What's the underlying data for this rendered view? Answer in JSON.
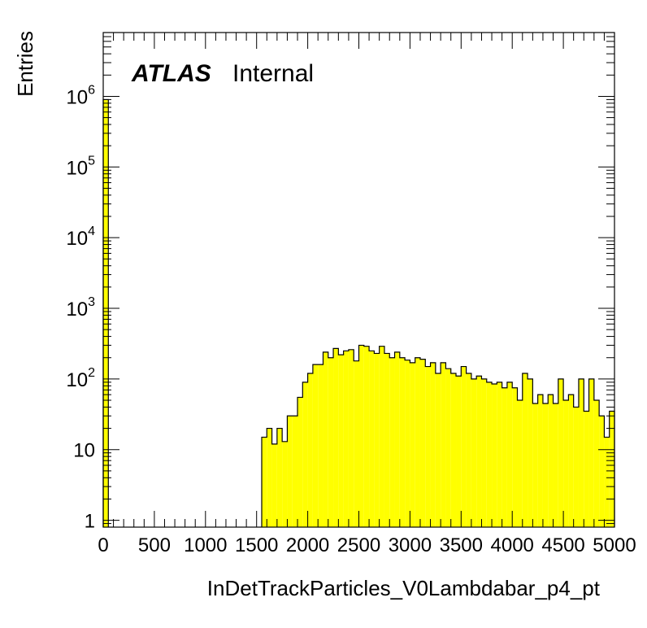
{
  "chart_data": {
    "type": "bar",
    "subtype": "histogram",
    "xlabel": "InDetTrackParticles_V0Lambdabar_p4_pt",
    "ylabel": "Entries",
    "atlas_label": "ATLAS",
    "atlas_status": "Internal",
    "x_range": [
      0,
      5000
    ],
    "y_range": [
      0.8,
      8000000
    ],
    "y_scale": "log",
    "bin_width": 50,
    "x_ticks": [
      "0",
      "500",
      "1000",
      "1500",
      "2000",
      "2500",
      "3000",
      "3500",
      "4000",
      "4500",
      "5000"
    ],
    "y_ticks": [
      {
        "value": 1,
        "label": "1",
        "sup": ""
      },
      {
        "value": 10,
        "label": "10",
        "sup": ""
      },
      {
        "value": 100,
        "label": "10",
        "sup": "2"
      },
      {
        "value": 1000,
        "label": "10",
        "sup": "3"
      },
      {
        "value": 10000,
        "label": "10",
        "sup": "4"
      },
      {
        "value": 100000,
        "label": "10",
        "sup": "5"
      },
      {
        "value": 1000000,
        "label": "10",
        "sup": "6"
      }
    ],
    "fill_color": "#ffff00",
    "line_color": "#000000",
    "grid": false,
    "series": [
      {
        "x_low": [
          0,
          1550,
          1600,
          1650,
          1700,
          1750,
          1800,
          1850,
          1900,
          1950,
          2000,
          2050,
          2100,
          2150,
          2200,
          2250,
          2300,
          2350,
          2400,
          2450,
          2500,
          2550,
          2600,
          2650,
          2700,
          2750,
          2800,
          2850,
          2900,
          2950,
          3000,
          3050,
          3100,
          3150,
          3200,
          3250,
          3300,
          3350,
          3400,
          3450,
          3500,
          3550,
          3600,
          3650,
          3700,
          3750,
          3800,
          3850,
          3900,
          3950,
          4000,
          4050,
          4100,
          4150,
          4200,
          4250,
          4300,
          4350,
          4400,
          4450,
          4500,
          4550,
          4600,
          4650,
          4700,
          4750,
          4800,
          4850,
          4900,
          4950
        ],
        "values": [
          900000,
          15,
          20,
          12,
          20,
          13,
          30,
          30,
          55,
          90,
          120,
          160,
          160,
          240,
          200,
          270,
          220,
          250,
          260,
          180,
          300,
          290,
          250,
          230,
          290,
          230,
          200,
          240,
          200,
          185,
          170,
          200,
          190,
          150,
          170,
          120,
          170,
          140,
          120,
          110,
          150,
          120,
          100,
          110,
          100,
          90,
          85,
          90,
          75,
          90,
          75,
          50,
          120,
          100,
          45,
          60,
          45,
          60,
          45,
          100,
          50,
          60,
          40,
          100,
          35,
          100,
          50,
          30,
          15,
          35
        ]
      }
    ]
  }
}
